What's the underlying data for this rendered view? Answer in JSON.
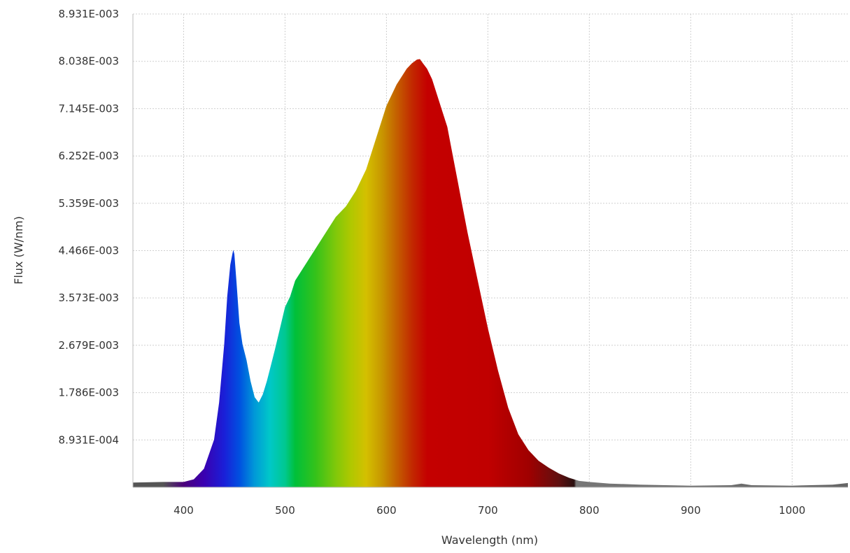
{
  "chart_data": {
    "type": "area",
    "title": "",
    "xlabel": "Wavelength (nm)",
    "ylabel": "Flux (W/nm)",
    "xlim": [
      350,
      1055
    ],
    "ylim": [
      0,
      0.008931
    ],
    "x_ticks": [
      {
        "value": 400,
        "label": "400"
      },
      {
        "value": 500,
        "label": "500"
      },
      {
        "value": 600,
        "label": "600"
      },
      {
        "value": 700,
        "label": "700"
      },
      {
        "value": 800,
        "label": "800"
      },
      {
        "value": 900,
        "label": "900"
      },
      {
        "value": 1000,
        "label": "1000"
      }
    ],
    "y_ticks": [
      {
        "value": 0.0008931,
        "label": "8.931E-004"
      },
      {
        "value": 0.001786,
        "label": "1.786E-003"
      },
      {
        "value": 0.002679,
        "label": "2.679E-003"
      },
      {
        "value": 0.003573,
        "label": "3.573E-003"
      },
      {
        "value": 0.004466,
        "label": "4.466E-003"
      },
      {
        "value": 0.005359,
        "label": "5.359E-003"
      },
      {
        "value": 0.006252,
        "label": "6.252E-003"
      },
      {
        "value": 0.007145,
        "label": "7.145E-003"
      },
      {
        "value": 0.008038,
        "label": "8.038E-003"
      },
      {
        "value": 0.008931,
        "label": "8.931E-003"
      }
    ],
    "grid": true,
    "fill": "spectral color gradient (violet to red), gray beyond ~785 nm",
    "series": [
      {
        "x": [
          350,
          380,
          400,
          410,
          420,
          430,
          435,
          440,
          443,
          446,
          448,
          449,
          450,
          452,
          455,
          458,
          462,
          466,
          470,
          474,
          478,
          482,
          486,
          490,
          495,
          500,
          505,
          510,
          520,
          530,
          540,
          550,
          560,
          570,
          580,
          590,
          600,
          610,
          620,
          625,
          630,
          633,
          636,
          640,
          645,
          650,
          655,
          660,
          665,
          670,
          675,
          680,
          690,
          700,
          710,
          720,
          730,
          740,
          750,
          760,
          770,
          780,
          790,
          800,
          820,
          850,
          900,
          940,
          950,
          960,
          1000,
          1040,
          1055
        ],
        "y": [
          9e-05,
          0.0001,
          0.0001,
          0.00015,
          0.00035,
          0.0009,
          0.0016,
          0.0027,
          0.0036,
          0.0042,
          0.0044,
          0.00448,
          0.0044,
          0.0039,
          0.0031,
          0.0027,
          0.0024,
          0.002,
          0.0017,
          0.0016,
          0.00175,
          0.002,
          0.0023,
          0.0026,
          0.003,
          0.0034,
          0.0036,
          0.0039,
          0.0042,
          0.0045,
          0.0048,
          0.0051,
          0.0053,
          0.0056,
          0.006,
          0.0066,
          0.0072,
          0.0076,
          0.0079,
          0.008,
          0.00807,
          0.00808,
          0.008,
          0.0079,
          0.0077,
          0.0074,
          0.0071,
          0.0068,
          0.0063,
          0.0058,
          0.0053,
          0.0048,
          0.0039,
          0.003,
          0.0022,
          0.0015,
          0.001,
          0.0007,
          0.0005,
          0.00037,
          0.00026,
          0.00018,
          0.00012,
          0.0001,
          7e-05,
          5e-05,
          3e-05,
          4e-05,
          7e-05,
          4e-05,
          3e-05,
          5e-05,
          8e-05
        ]
      }
    ]
  }
}
